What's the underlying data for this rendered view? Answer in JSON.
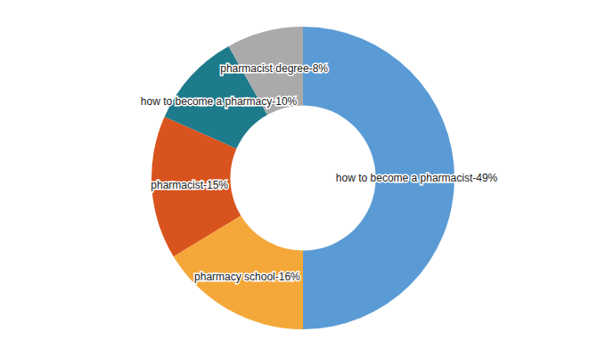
{
  "chart_data": {
    "type": "pie",
    "categories": [
      "how to become a pharmacist-49%",
      "pharmacy school-16%",
      "pharmacist-15%",
      "how to become a pharmacy-10%",
      "pharmacist degree-8%"
    ],
    "values": [
      49,
      16,
      15,
      10,
      8
    ],
    "colors": [
      "#5B9BD5",
      "#F5A83A",
      "#D9531E",
      "#1E7B8C",
      "#AAAAAA"
    ]
  }
}
